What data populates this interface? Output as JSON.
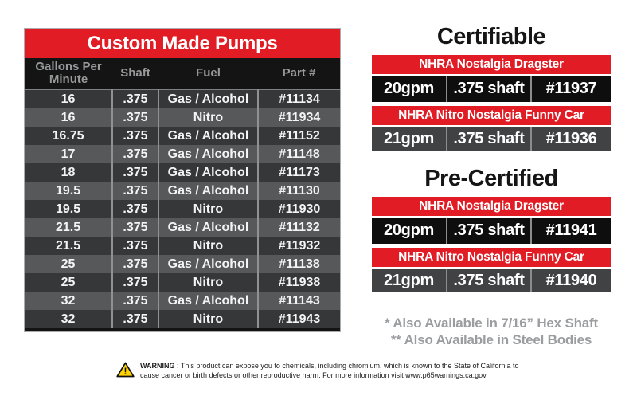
{
  "pump_table": {
    "title": "Custom Made Pumps",
    "columns": [
      "Gallons Per Minute",
      "Shaft",
      "Fuel",
      "Part #"
    ],
    "rows": [
      [
        "16",
        ".375",
        "Gas / Alcohol",
        "#11134"
      ],
      [
        "16",
        ".375",
        "Nitro",
        "#11934"
      ],
      [
        "16.75",
        ".375",
        "Gas / Alcohol",
        "#11152"
      ],
      [
        "17",
        ".375",
        "Gas / Alcohol",
        "#11148"
      ],
      [
        "18",
        ".375",
        "Gas / Alcohol",
        "#11173"
      ],
      [
        "19.5",
        ".375",
        "Gas / Alcohol",
        "#11130"
      ],
      [
        "19.5",
        ".375",
        "Nitro",
        "#11930"
      ],
      [
        "21.5",
        ".375",
        "Gas / Alcohol",
        "#11132"
      ],
      [
        "21.5",
        ".375",
        "Nitro",
        "#11932"
      ],
      [
        "25",
        ".375",
        "Gas / Alcohol",
        "#11138"
      ],
      [
        "25",
        ".375",
        "Nitro",
        "#11938"
      ],
      [
        "32",
        ".375",
        "Gas / Alcohol",
        "#11143"
      ],
      [
        "32",
        ".375",
        "Nitro",
        "#11943"
      ]
    ]
  },
  "sections": [
    {
      "title": "Certifiable",
      "cards": [
        {
          "header": "NHRA Nostalgia Dragster",
          "cells": [
            "20gpm",
            ".375 shaft",
            "#11937"
          ]
        },
        {
          "header": "NHRA Nitro Nostalgia Funny Car",
          "cells": [
            "21gpm",
            ".375 shaft",
            "#11936"
          ]
        }
      ]
    },
    {
      "title": "Pre-Certified",
      "cards": [
        {
          "header": "NHRA Nostalgia Dragster",
          "cells": [
            "20gpm",
            ".375 shaft",
            "#11941"
          ]
        },
        {
          "header": "NHRA Nitro Nostalgia Funny Car",
          "cells": [
            "21gpm",
            ".375 shaft",
            "#11940"
          ]
        }
      ]
    }
  ],
  "notes": [
    "* Also Available in 7/16” Hex Shaft",
    "** Also Available in Steel Bodies"
  ],
  "warning": {
    "label": "WARNING",
    "text": ": This product can expose you to chemicals, including chromium, which is known to the State of California to cause cancer or birth defects or other reproductive harm. For more information visit www.p65warnings.ca.gov"
  },
  "colors": {
    "red": "#e11c24",
    "dark_row": "#353739",
    "light_row": "#56585a",
    "black_row": "#0e0e0e",
    "gray_row": "#404244"
  }
}
